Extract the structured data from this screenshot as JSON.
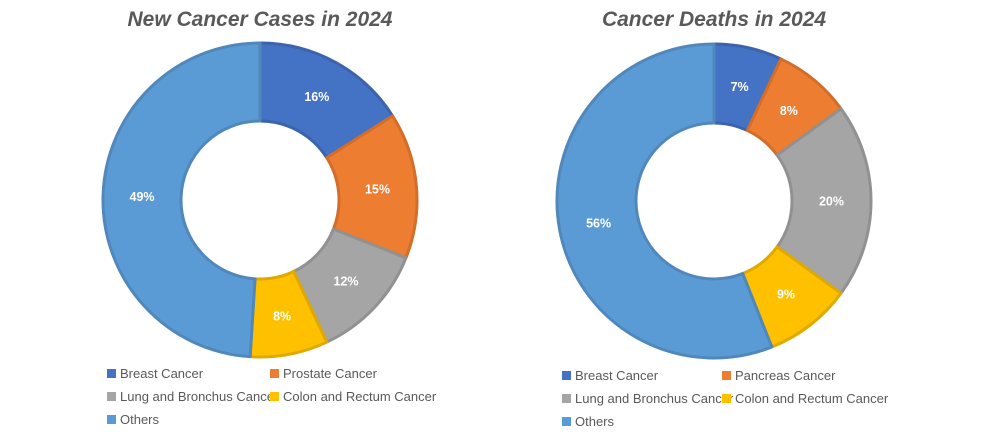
{
  "colors": [
    "#4472C4",
    "#ED7D31",
    "#A5A5A5",
    "#FFC000",
    "#5B9BD5"
  ],
  "chart_data": [
    {
      "type": "pie",
      "donut": true,
      "title": "New Cancer Cases in 2024",
      "categories": [
        "Breast Cancer",
        "Prostate Cancer",
        "Lung and Bronchus Cancer",
        "Colon and Rectum Cancer",
        "Others"
      ],
      "values": [
        16,
        15,
        12,
        8,
        49
      ],
      "labels": [
        "16%",
        "15%",
        "12%",
        "8%",
        "49%"
      ],
      "legend": "bottom"
    },
    {
      "type": "pie",
      "donut": true,
      "title": "Cancer Deaths in 2024",
      "categories": [
        "Breast Cancer",
        "Pancreas Cancer",
        "Lung and Bronchus Cancer",
        "Colon and Rectum Cancer",
        "Others"
      ],
      "values": [
        7,
        8,
        20,
        9,
        56
      ],
      "labels": [
        "7%",
        "8%",
        "20%",
        "9%",
        "56%"
      ],
      "legend": "bottom"
    }
  ]
}
